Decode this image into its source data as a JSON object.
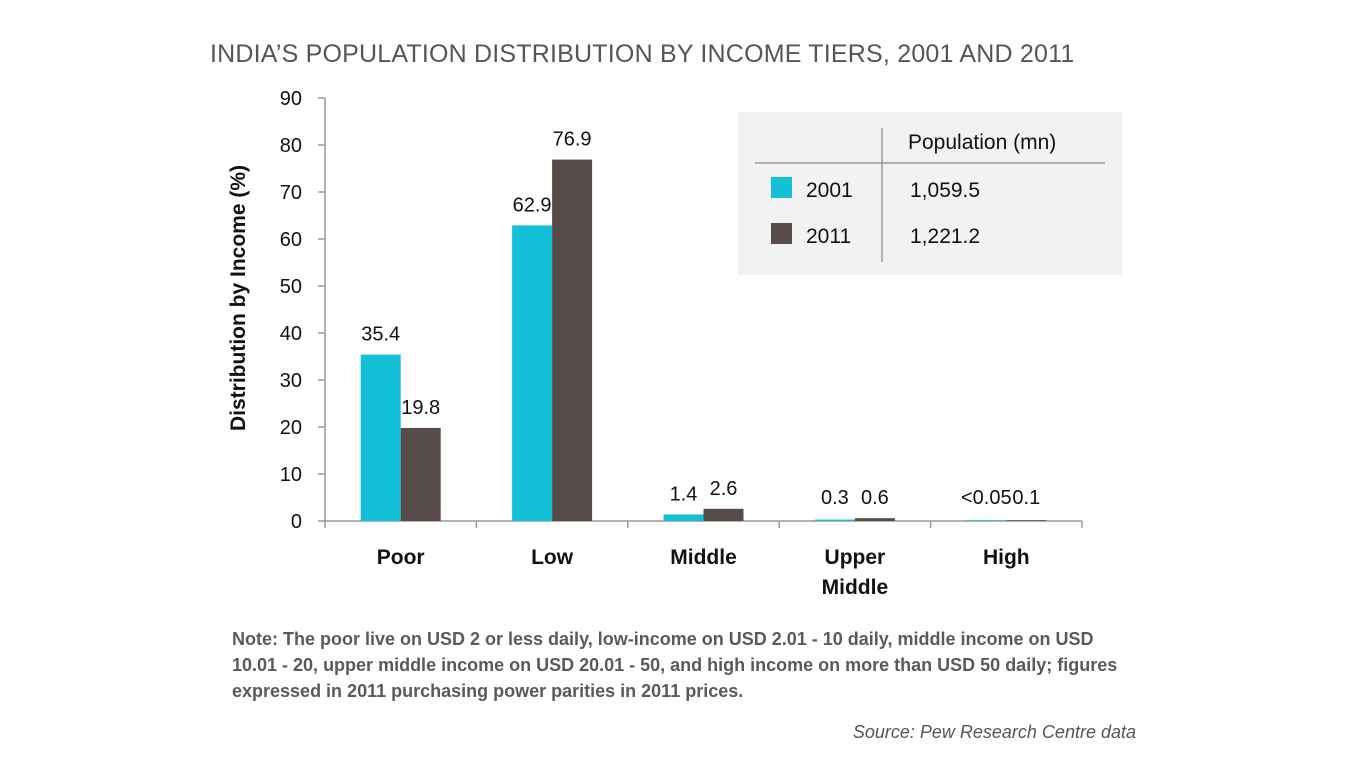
{
  "chart_data": {
    "type": "bar",
    "title": "INDIA’S POPULATION DISTRIBUTION BY INCOME TIERS, 2001 AND 2011",
    "ylabel": "Distribution by Income (%)",
    "xlabel": "",
    "ylim": [
      0,
      90
    ],
    "yticks": [
      0,
      10,
      20,
      30,
      40,
      50,
      60,
      70,
      80,
      90
    ],
    "categories": [
      [
        "Poor"
      ],
      [
        "Low"
      ],
      [
        "Middle"
      ],
      [
        "Upper",
        "Middle"
      ],
      [
        "High"
      ]
    ],
    "series": [
      {
        "name": "2001",
        "color": "#14bfd8",
        "values": [
          35.4,
          62.9,
          1.4,
          0.3,
          0.05
        ],
        "labels": [
          "35.4",
          "62.9",
          "1.4",
          "0.3",
          "<0.05"
        ]
      },
      {
        "name": "2011",
        "color": "#574c49",
        "values": [
          19.8,
          76.9,
          2.6,
          0.6,
          0.1
        ],
        "labels": [
          "19.8",
          "76.9",
          "2.6",
          "0.6",
          "0.1"
        ]
      }
    ],
    "legend": {
      "placement": "top-right",
      "header": "Population (mn)",
      "entries": [
        {
          "name": "2001",
          "population": "1,059.5"
        },
        {
          "name": "2011",
          "population": "1,221.2"
        }
      ],
      "background": "#f2f2f2"
    },
    "grid": false
  },
  "note": "Note: The poor live on USD 2 or less daily, low-income on USD 2.01 - 10 daily, middle income on USD 10.01 - 20, upper middle income on USD 20.01 - 50, and high income on more than USD 50 daily; figures expressed in 2011 purchasing power parities in 2011 prices.",
  "source": "Source: Pew Research Centre data"
}
